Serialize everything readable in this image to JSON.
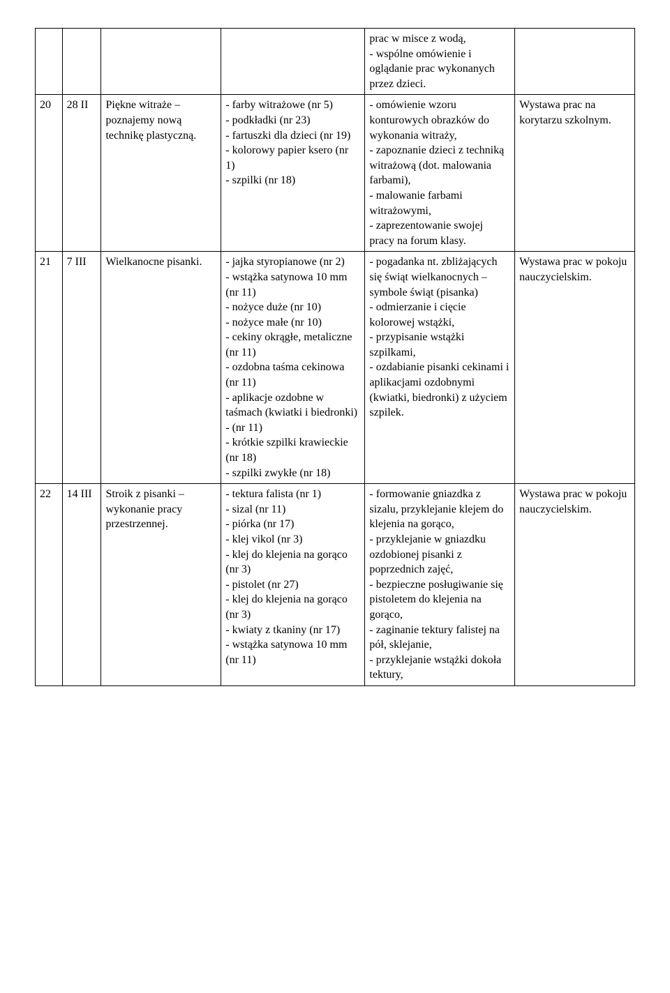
{
  "table": {
    "rows": [
      {
        "num": "",
        "date": "",
        "topic": "",
        "materials": "",
        "activities": "prac w misce z wodą,\n- wspólne omówienie i oglądanie prac wykonanych przez dzieci.",
        "outcome": ""
      },
      {
        "num": "20",
        "date": "28 II",
        "topic": "Piękne witraże – poznajemy nową technikę plastyczną.",
        "materials": "- farby witrażowe (nr 5)\n- podkładki (nr 23)\n- fartuszki dla dzieci (nr 19)\n- kolorowy papier ksero (nr 1)\n- szpilki (nr 18)",
        "activities": "- omówienie wzoru konturowych obrazków do wykonania witraży,\n- zapoznanie dzieci z techniką witrażową (dot. malowania farbami),\n- malowanie farbami witrażowymi,\n- zaprezentowanie swojej pracy na forum klasy.",
        "outcome": "Wystawa prac na korytarzu szkolnym."
      },
      {
        "num": "21",
        "date": "7 III",
        "topic": "Wielkanocne pisanki.",
        "materials": "- jajka styropianowe (nr 2)\n- wstążka satynowa 10 mm\n(nr 11)\n- nożyce duże (nr 10)\n- nożyce małe (nr 10)\n- cekiny okrągłe, metaliczne\n(nr 11)\n- ozdobna taśma cekinowa\n(nr 11)\n- aplikacje ozdobne w taśmach (kwiatki i biedronki) - (nr 11)\n- krótkie szpilki krawieckie (nr 18)\n- szpilki zwykłe (nr 18)",
        "activities": "- pogadanka nt. zbliżających się świąt wielkanocnych – symbole świąt (pisanka)\n- odmierzanie i cięcie kolorowej wstążki,\n- przypisanie wstążki szpilkami,\n- ozdabianie pisanki cekinami i aplikacjami ozdobnymi (kwiatki, biedronki) z użyciem szpilek.",
        "outcome": "Wystawa prac w pokoju nauczycielskim."
      },
      {
        "num": "22",
        "date": "14 III",
        "topic": "Stroik z pisanki – wykonanie pracy przestrzennej.",
        "materials": "- tektura falista (nr 1)\n- sizal (nr 11)\n- piórka (nr 17)\n- klej vikol (nr 3)\n- klej do klejenia na gorąco (nr 3)\n- pistolet (nr 27)\n- klej do klejenia na gorąco (nr 3)\n- kwiaty z tkaniny (nr 17)\n- wstążka satynowa 10 mm\n(nr 11)",
        "activities": "- formowanie gniazdka z sizalu, przyklejanie klejem do klejenia na gorąco,\n- przyklejanie w gniazdku ozdobionej pisanki z poprzednich zajęć,\n- bezpieczne posługiwanie się pistoletem do klejenia na gorąco,\n- zaginanie tektury falistej na pół, sklejanie,\n- przyklejanie wstążki dokoła tektury,",
        "outcome": "Wystawa prac w pokoju nauczycielskim."
      }
    ]
  }
}
